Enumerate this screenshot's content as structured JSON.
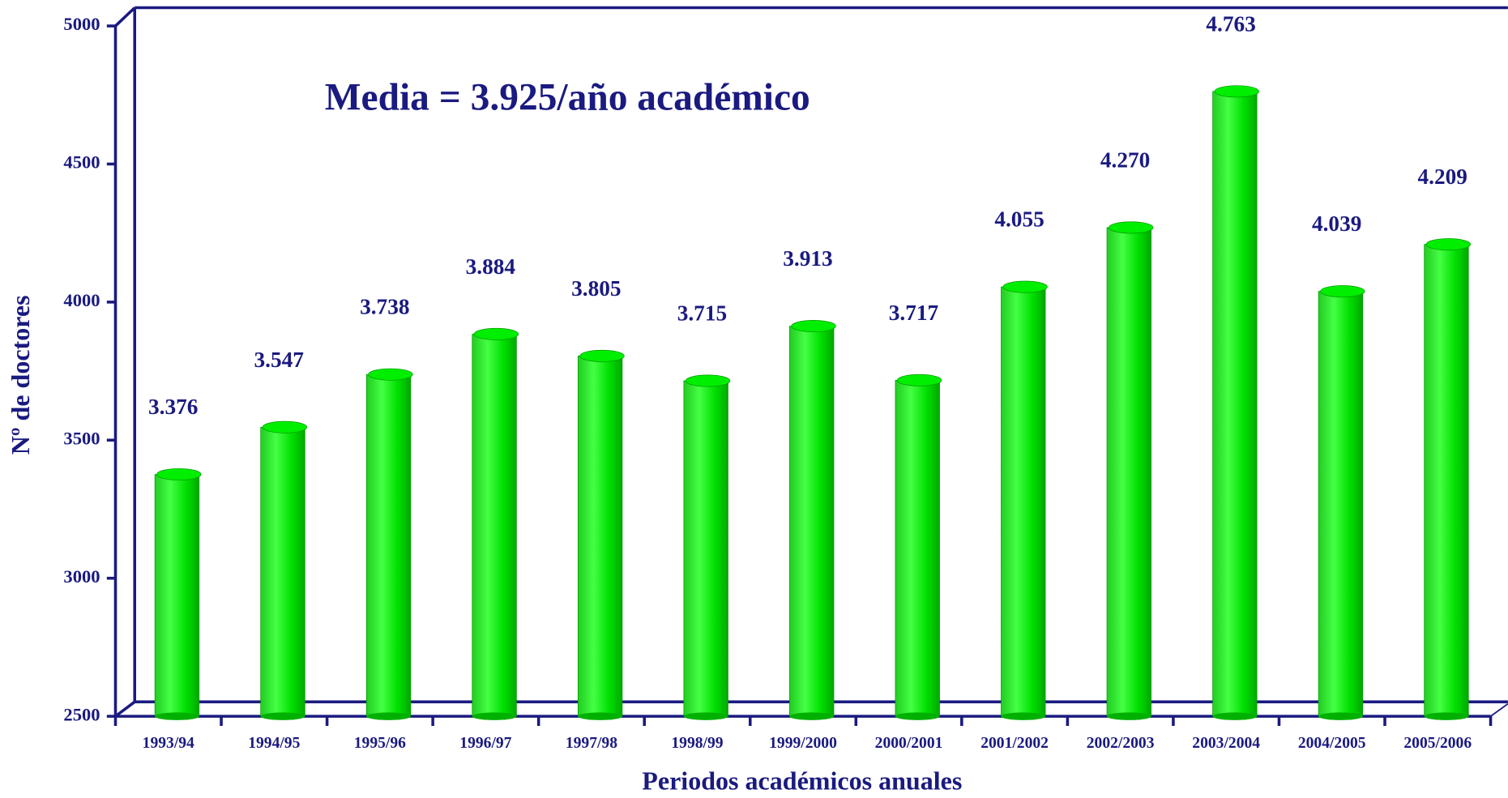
{
  "chart_data": {
    "type": "bar",
    "annotations": [
      "Media = 3.925/año académico"
    ],
    "xlabel": "Periodos académicos anuales",
    "ylabel": "Nº de doctores",
    "categories": [
      "1993/94",
      "1994/95",
      "1995/96",
      "1996/97",
      "1997/98",
      "1998/99",
      "1999/2000",
      "2000/2001",
      "2001/2002",
      "2002/2003",
      "2003/2004",
      "2004/2005",
      "2005/2006"
    ],
    "values": [
      3376,
      3547,
      3738,
      3884,
      3805,
      3715,
      3913,
      3717,
      4055,
      4270,
      4763,
      4039,
      4209
    ],
    "value_labels": [
      "3.376",
      "3.547",
      "3.738",
      "3.884",
      "3.805",
      "3.715",
      "3.913",
      "3.717",
      "4.055",
      "4.270",
      "4.763",
      "4.039",
      "4.209"
    ],
    "color": "#00ee00",
    "ylim": [
      2500,
      5000
    ],
    "yticks": [
      2500,
      3000,
      3500,
      4000,
      4500,
      5000
    ]
  }
}
